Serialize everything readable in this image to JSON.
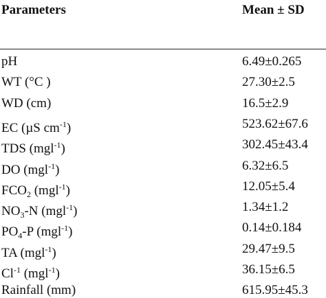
{
  "table": {
    "header": [
      "Parameters",
      "Mean ± SD"
    ],
    "rows": [
      {
        "parameter": [
          {
            "text": "pH"
          }
        ],
        "value": "6.49±0.265"
      },
      {
        "parameter": [
          {
            "text": "WT (°C )"
          }
        ],
        "value": "27.30±2.5"
      },
      {
        "parameter": [
          {
            "text": "WD (cm)"
          }
        ],
        "value": "16.5±2.9"
      },
      {
        "parameter": [
          {
            "text": "EC (µS cm"
          },
          {
            "text": "-1",
            "pos": "sup"
          },
          {
            "text": ")"
          }
        ],
        "value": "523.62±67.6"
      },
      {
        "parameter": [
          {
            "text": "TDS (mgl"
          },
          {
            "text": "-1",
            "pos": "sup"
          },
          {
            "text": ")"
          }
        ],
        "value": "302.45±43.4"
      },
      {
        "parameter": [
          {
            "text": "DO (mgl"
          },
          {
            "text": "-1",
            "pos": "sup"
          },
          {
            "text": ")"
          }
        ],
        "value": "6.32±6.5"
      },
      {
        "parameter": [
          {
            "text": "FCO"
          },
          {
            "text": "2",
            "pos": "sub"
          },
          {
            "text": " (mgl"
          },
          {
            "text": "-1",
            "pos": "sup"
          },
          {
            "text": ")"
          }
        ],
        "value": "12.05±5.4"
      },
      {
        "parameter": [
          {
            "text": "NO"
          },
          {
            "text": "3",
            "pos": "sub"
          },
          {
            "text": "-N (mgl"
          },
          {
            "text": "-1",
            "pos": "sup"
          },
          {
            "text": ")"
          }
        ],
        "value": "1.34±1.2"
      },
      {
        "parameter": [
          {
            "text": "PO"
          },
          {
            "text": "4",
            "pos": "sub"
          },
          {
            "text": "-P (mgl"
          },
          {
            "text": "-1",
            "pos": "sup"
          },
          {
            "text": ")"
          }
        ],
        "value": "0.14±0.184"
      },
      {
        "parameter": [
          {
            "text": "TA (mgl"
          },
          {
            "text": "-1",
            "pos": "sup"
          },
          {
            "text": ")"
          }
        ],
        "value": "29.47±9.5"
      },
      {
        "parameter": [
          {
            "text": "Cl"
          },
          {
            "text": "-1",
            "pos": "sup"
          },
          {
            "text": " (mgl"
          },
          {
            "text": "-1",
            "pos": "sup"
          },
          {
            "text": ")"
          }
        ],
        "value": "36.15±6.5"
      },
      {
        "parameter": [
          {
            "text": "Rainfall (mm)"
          }
        ],
        "value": "615.95±45.3"
      }
    ]
  }
}
